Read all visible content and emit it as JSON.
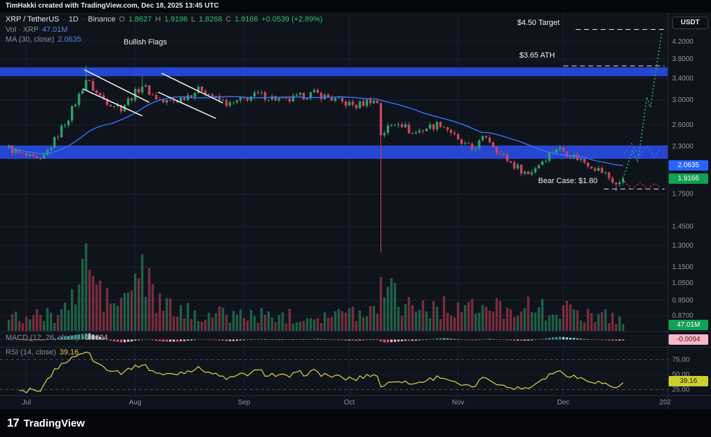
{
  "attribution": "TimHakki created with TradingView.com, Dec 18, 2025 13:45 UTC",
  "symbol_row": {
    "symbol": "XRP / TetherUS",
    "sep": "·",
    "interval": "1D",
    "exchange": "Binance",
    "ohlc_labels": {
      "o": "O",
      "h": "H",
      "l": "L",
      "c": "C"
    },
    "open": "1.8627",
    "high": "1.9196",
    "low": "1.8268",
    "close": "1.9166",
    "change": "+0.0539 (+2.89%)"
  },
  "vol_row": {
    "label": "Vol · XRP",
    "value": "47.01M"
  },
  "ma_row": {
    "label": "MA (30, close)",
    "value": "2.0635"
  },
  "macd_row": {
    "label": "MACD (12, 26, close)",
    "value": "-0.0094"
  },
  "rsi_row": {
    "label": "RSI (14, close)",
    "value": "39.16"
  },
  "axis": {
    "currency": "USDT",
    "price_ticks": [
      {
        "label": "4.2000",
        "value": 4.2
      },
      {
        "label": "3.8000",
        "value": 3.8
      },
      {
        "label": "3.4000",
        "value": 3.4
      },
      {
        "label": "3.0000",
        "value": 3.0
      },
      {
        "label": "2.6000",
        "value": 2.6
      },
      {
        "label": "2.3000",
        "value": 2.3
      },
      {
        "label": "1.7500",
        "value": 1.75
      },
      {
        "label": "1.4500",
        "value": 1.45
      },
      {
        "label": "1.3000",
        "value": 1.3
      },
      {
        "label": "1.1500",
        "value": 1.15
      },
      {
        "label": "1.0500",
        "value": 1.05
      },
      {
        "label": "0.9500",
        "value": 0.95
      },
      {
        "label": "0.8700",
        "value": 0.87
      }
    ],
    "rsi_ticks": [
      {
        "label": "75.00",
        "value": 75
      },
      {
        "label": "50.00",
        "value": 50
      },
      {
        "label": "25.00",
        "value": 25
      }
    ],
    "time_ticks": [
      {
        "label": "Jul",
        "day": 0
      },
      {
        "label": "Aug",
        "day": 31
      },
      {
        "label": "Sep",
        "day": 62
      },
      {
        "label": "Oct",
        "day": 92
      },
      {
        "label": "Nov",
        "day": 123
      },
      {
        "label": "Dec",
        "day": 153
      },
      {
        "label": "202",
        "day": 184
      }
    ],
    "badges": {
      "ma": "2.0635",
      "last": "1.9166",
      "volume": "47.01M",
      "macd": "-0.0094",
      "rsi": "39.16"
    }
  },
  "logo": {
    "mark": "17",
    "name": "TradingView"
  },
  "chart_data": {
    "type": "candlestick",
    "symbol": "XRP/USDT",
    "exchange": "Binance",
    "interval": "1D",
    "scale": "log",
    "date_range": [
      "2025-06-26",
      "2025-12-18"
    ],
    "day_range": [
      -5,
      170
    ],
    "annotations": {
      "flags_label": "Bullish Flags"
    },
    "current": {
      "open": 1.8627,
      "high": 1.9196,
      "low": 1.8268,
      "close": 1.9166,
      "change": 0.0539,
      "change_pct": 2.89,
      "volume": "47.01M",
      "ma30": 2.0635,
      "macd_hist": -0.0094,
      "rsi": 39.16
    },
    "indicators": {
      "ma_period": 30,
      "macd": [
        12,
        26,
        9
      ],
      "rsi_period": 14
    },
    "anchors": [
      [
        -5,
        2.28
      ],
      [
        -2,
        2.2
      ],
      [
        0,
        2.17
      ],
      [
        4,
        2.1
      ],
      [
        8,
        2.38
      ],
      [
        12,
        2.72
      ],
      [
        15,
        3.08
      ],
      [
        17,
        3.38
      ],
      [
        20,
        3.12
      ],
      [
        23,
        2.98
      ],
      [
        27,
        2.87
      ],
      [
        30,
        3.06
      ],
      [
        33,
        3.27
      ],
      [
        36,
        3.08
      ],
      [
        39,
        2.96
      ],
      [
        43,
        3.0
      ],
      [
        47,
        3.12
      ],
      [
        50,
        3.2
      ],
      [
        54,
        3.02
      ],
      [
        58,
        2.92
      ],
      [
        62,
        3.02
      ],
      [
        66,
        3.1
      ],
      [
        70,
        3.04
      ],
      [
        74,
        2.98
      ],
      [
        78,
        3.06
      ],
      [
        82,
        3.12
      ],
      [
        86,
        3.04
      ],
      [
        90,
        2.96
      ],
      [
        94,
        2.9
      ],
      [
        98,
        3.0
      ],
      [
        100,
        2.96
      ],
      [
        101,
        2.45
      ],
      [
        103,
        2.56
      ],
      [
        106,
        2.66
      ],
      [
        110,
        2.47
      ],
      [
        114,
        2.56
      ],
      [
        118,
        2.62
      ],
      [
        121,
        2.5
      ],
      [
        123,
        2.36
      ],
      [
        127,
        2.26
      ],
      [
        131,
        2.44
      ],
      [
        135,
        2.2
      ],
      [
        139,
        2.06
      ],
      [
        143,
        1.96
      ],
      [
        147,
        2.12
      ],
      [
        151,
        2.28
      ],
      [
        153,
        2.24
      ],
      [
        157,
        2.15
      ],
      [
        161,
        2.06
      ],
      [
        165,
        1.96
      ],
      [
        168,
        1.85
      ],
      [
        170,
        1.9166
      ]
    ],
    "overrides": [
      {
        "day": 17,
        "high": 3.66
      },
      {
        "day": 33,
        "high": 3.44
      },
      {
        "day": 101,
        "close": 2.45,
        "low": 1.25
      },
      {
        "day": 168,
        "low": 1.775
      },
      {
        "day": 169,
        "close": 1.87
      },
      {
        "day": 170,
        "close": 1.9166
      }
    ],
    "volume_profile": [
      [
        -5,
        130
      ],
      [
        8,
        170
      ],
      [
        13,
        300
      ],
      [
        16,
        640
      ],
      [
        17,
        780
      ],
      [
        19,
        560
      ],
      [
        22,
        340
      ],
      [
        26,
        280
      ],
      [
        30,
        420
      ],
      [
        32,
        700
      ],
      [
        34,
        500
      ],
      [
        38,
        280
      ],
      [
        44,
        200
      ],
      [
        52,
        180
      ],
      [
        60,
        170
      ],
      [
        70,
        160
      ],
      [
        80,
        160
      ],
      [
        90,
        180
      ],
      [
        98,
        210
      ],
      [
        100,
        260
      ],
      [
        101,
        840
      ],
      [
        103,
        520
      ],
      [
        106,
        340
      ],
      [
        112,
        270
      ],
      [
        118,
        240
      ],
      [
        123,
        270
      ],
      [
        128,
        220
      ],
      [
        134,
        240
      ],
      [
        139,
        270
      ],
      [
        143,
        250
      ],
      [
        148,
        220
      ],
      [
        151,
        240
      ],
      [
        156,
        190
      ],
      [
        161,
        180
      ],
      [
        166,
        160
      ],
      [
        170,
        105
      ]
    ],
    "zones": [
      {
        "from": 3.44,
        "to": 3.62
      },
      {
        "from": 2.14,
        "to": 2.31
      }
    ],
    "levels": [
      {
        "price": 4.5,
        "label": "$4.50 Target",
        "dash_from_day": 156.5
      },
      {
        "price": 3.65,
        "label": "$3.65 ATH",
        "dash_from_day": 153
      },
      {
        "price": 1.8,
        "label": "Bear Case: $1.80",
        "dash_from_day": 164.5
      }
    ],
    "flag_lines": [
      {
        "points": [
          [
            16.5,
            3.57
          ],
          [
            35,
            2.96
          ]
        ]
      },
      {
        "points": [
          [
            16,
            3.2
          ],
          [
            33,
            2.74
          ]
        ]
      },
      {
        "points": [
          [
            38.5,
            3.5
          ],
          [
            56,
            2.95
          ]
        ]
      },
      {
        "points": [
          [
            37.5,
            3.14
          ],
          [
            54,
            2.7
          ]
        ]
      }
    ],
    "projections": [
      {
        "name": "bull-path",
        "color": "#26c06a",
        "dash": "2,3",
        "width": 1.5,
        "points": [
          [
            170.3,
            1.95
          ],
          [
            172.6,
            2.24
          ],
          [
            174.2,
            2.1
          ],
          [
            176.8,
            3.05
          ],
          [
            177.8,
            2.88
          ],
          [
            181,
            4.42
          ]
        ]
      },
      {
        "name": "band-path",
        "color": "#3d6bff",
        "dash": "3,3",
        "width": 1.3,
        "points": [
          [
            170.3,
            2.2
          ],
          [
            172.4,
            2.34
          ],
          [
            174.6,
            2.17
          ],
          [
            176.8,
            2.31
          ],
          [
            178.8,
            2.16
          ],
          [
            180.6,
            2.27
          ]
        ]
      },
      {
        "name": "bear-path",
        "color": "#e8475c",
        "dash": "2,3",
        "width": 1.3,
        "points": [
          [
            170.3,
            1.88
          ],
          [
            172.6,
            1.8
          ],
          [
            174.8,
            1.87
          ],
          [
            177,
            1.8
          ],
          [
            179,
            1.86
          ],
          [
            180.8,
            1.81
          ]
        ]
      }
    ],
    "colors": {
      "up": "#2fa06a",
      "down": "#d0455a",
      "ma": "#3575ff",
      "zone": "rgba(41,80,240,0.85)",
      "volume_up": "rgba(47,160,106,0.55)",
      "volume_down": "rgba(208,69,90,0.55)",
      "rsi_line": "#d3ca45",
      "level": "#e9eaee",
      "flag": "#e9eaee",
      "macd_pos": "#2fa08c",
      "macd_pos_weak": "#9ed8cf",
      "macd_neg": "#e4566a",
      "macd_neg_weak": "#f2b9c2",
      "grid": "#1b2130",
      "axis_text": "#9096a1",
      "separator": "#252a38"
    }
  }
}
